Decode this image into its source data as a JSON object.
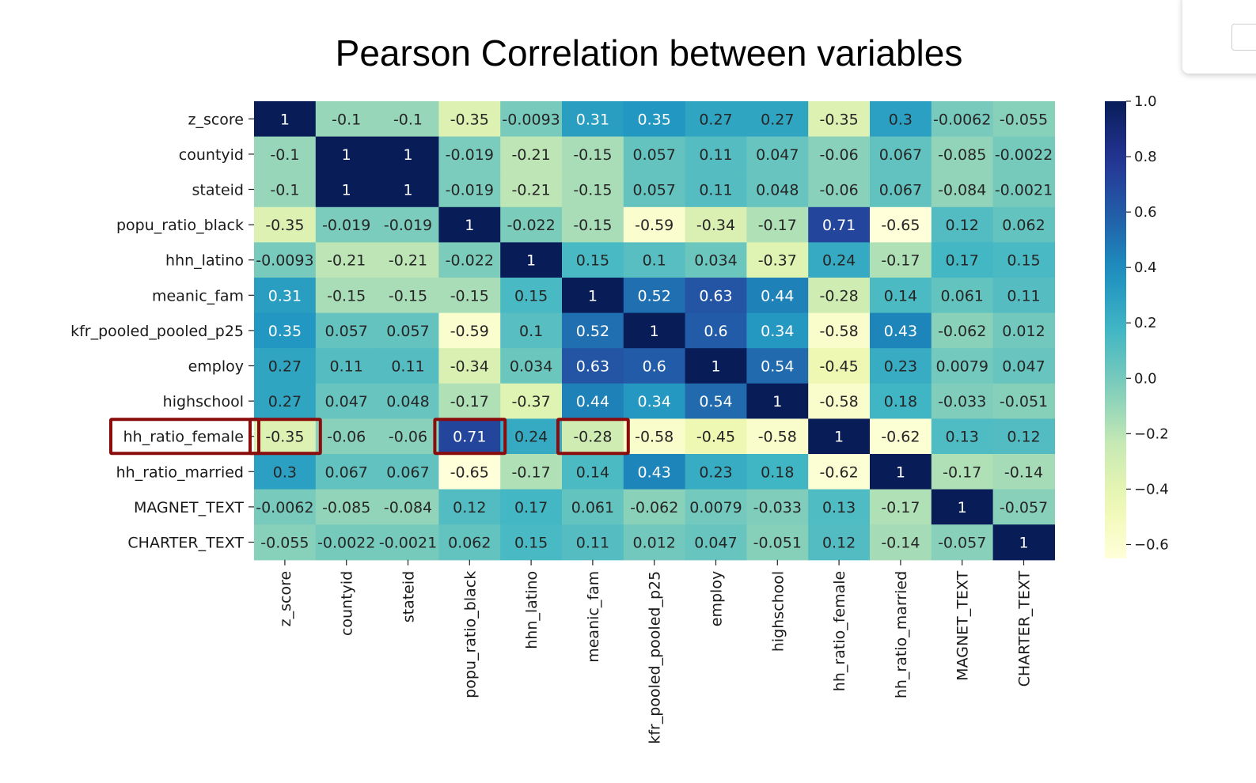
{
  "chart_data": {
    "type": "heatmap",
    "title": "Pearson Correlation between variables",
    "variables": [
      "z_score",
      "countyid",
      "stateid",
      "popu_ratio_black",
      "hhn_latino",
      "meanic_fam",
      "kfr_pooled_pooled_p25",
      "employ",
      "highschool",
      "hh_ratio_female",
      "hh_ratio_married",
      "MAGNET_TEXT",
      "CHARTER_TEXT"
    ],
    "values": [
      [
        1,
        -0.1,
        -0.1,
        -0.35,
        -0.0093,
        0.31,
        0.35,
        0.27,
        0.27,
        -0.35,
        0.3,
        -0.0062,
        -0.055
      ],
      [
        -0.1,
        1,
        1,
        -0.019,
        -0.21,
        -0.15,
        0.057,
        0.11,
        0.047,
        -0.06,
        0.067,
        -0.085,
        -0.0022
      ],
      [
        -0.1,
        1,
        1,
        -0.019,
        -0.21,
        -0.15,
        0.057,
        0.11,
        0.048,
        -0.06,
        0.067,
        -0.084,
        -0.0021
      ],
      [
        -0.35,
        -0.019,
        -0.019,
        1,
        -0.022,
        -0.15,
        -0.59,
        -0.34,
        -0.17,
        0.71,
        -0.65,
        0.12,
        0.062
      ],
      [
        -0.0093,
        -0.21,
        -0.21,
        -0.022,
        1,
        0.15,
        0.1,
        0.034,
        -0.37,
        0.24,
        -0.17,
        0.17,
        0.15
      ],
      [
        0.31,
        -0.15,
        -0.15,
        -0.15,
        0.15,
        1,
        0.52,
        0.63,
        0.44,
        -0.28,
        0.14,
        0.061,
        0.11
      ],
      [
        0.35,
        0.057,
        0.057,
        -0.59,
        0.1,
        0.52,
        1,
        0.6,
        0.34,
        -0.58,
        0.43,
        -0.062,
        0.012
      ],
      [
        0.27,
        0.11,
        0.11,
        -0.34,
        0.034,
        0.63,
        0.6,
        1,
        0.54,
        -0.45,
        0.23,
        0.0079,
        0.047
      ],
      [
        0.27,
        0.047,
        0.048,
        -0.17,
        -0.37,
        0.44,
        0.34,
        0.54,
        1,
        -0.58,
        0.18,
        -0.033,
        -0.051
      ],
      [
        -0.35,
        -0.06,
        -0.06,
        0.71,
        0.24,
        -0.28,
        -0.58,
        -0.45,
        -0.58,
        1,
        -0.62,
        0.13,
        0.12
      ],
      [
        0.3,
        0.067,
        0.067,
        -0.65,
        -0.17,
        0.14,
        0.43,
        0.23,
        0.18,
        -0.62,
        1,
        -0.17,
        -0.14
      ],
      [
        -0.0062,
        -0.085,
        -0.084,
        0.12,
        0.17,
        0.061,
        -0.062,
        0.0079,
        -0.033,
        0.13,
        -0.17,
        1,
        -0.057
      ],
      [
        -0.055,
        -0.0022,
        -0.0021,
        0.062,
        0.15,
        0.11,
        0.012,
        0.047,
        -0.051,
        0.12,
        -0.14,
        -0.057,
        1
      ]
    ],
    "value_labels": [
      [
        "1",
        "-0.1",
        "-0.1",
        "-0.35",
        "-0.0093",
        "0.31",
        "0.35",
        "0.27",
        "0.27",
        "-0.35",
        "0.3",
        "-0.0062",
        "-0.055"
      ],
      [
        "-0.1",
        "1",
        "1",
        "-0.019",
        "-0.21",
        "-0.15",
        "0.057",
        "0.11",
        "0.047",
        "-0.06",
        "0.067",
        "-0.085",
        "-0.0022"
      ],
      [
        "-0.1",
        "1",
        "1",
        "-0.019",
        "-0.21",
        "-0.15",
        "0.057",
        "0.11",
        "0.048",
        "-0.06",
        "0.067",
        "-0.084",
        "-0.0021"
      ],
      [
        "-0.35",
        "-0.019",
        "-0.019",
        "1",
        "-0.022",
        "-0.15",
        "-0.59",
        "-0.34",
        "-0.17",
        "0.71",
        "-0.65",
        "0.12",
        "0.062"
      ],
      [
        "-0.0093",
        "-0.21",
        "-0.21",
        "-0.022",
        "1",
        "0.15",
        "0.1",
        "0.034",
        "-0.37",
        "0.24",
        "-0.17",
        "0.17",
        "0.15"
      ],
      [
        "0.31",
        "-0.15",
        "-0.15",
        "-0.15",
        "0.15",
        "1",
        "0.52",
        "0.63",
        "0.44",
        "-0.28",
        "0.14",
        "0.061",
        "0.11"
      ],
      [
        "0.35",
        "0.057",
        "0.057",
        "-0.59",
        "0.1",
        "0.52",
        "1",
        "0.6",
        "0.34",
        "-0.58",
        "0.43",
        "-0.062",
        "0.012"
      ],
      [
        "0.27",
        "0.11",
        "0.11",
        "-0.34",
        "0.034",
        "0.63",
        "0.6",
        "1",
        "0.54",
        "-0.45",
        "0.23",
        "0.0079",
        "0.047"
      ],
      [
        "0.27",
        "0.047",
        "0.048",
        "-0.17",
        "-0.37",
        "0.44",
        "0.34",
        "0.54",
        "1",
        "-0.58",
        "0.18",
        "-0.033",
        "-0.051"
      ],
      [
        "-0.35",
        "-0.06",
        "-0.06",
        "0.71",
        "0.24",
        "-0.28",
        "-0.58",
        "-0.45",
        "-0.58",
        "1",
        "-0.62",
        "0.13",
        "0.12"
      ],
      [
        "0.3",
        "0.067",
        "0.067",
        "-0.65",
        "-0.17",
        "0.14",
        "0.43",
        "0.23",
        "0.18",
        "-0.62",
        "1",
        "-0.17",
        "-0.14"
      ],
      [
        "-0.0062",
        "-0.085",
        "-0.084",
        "0.12",
        "0.17",
        "0.061",
        "-0.062",
        "0.0079",
        "-0.033",
        "0.13",
        "-0.17",
        "1",
        "-0.057"
      ],
      [
        "-0.055",
        "-0.0022",
        "-0.0021",
        "0.062",
        "0.15",
        "0.11",
        "0.012",
        "0.047",
        "-0.051",
        "0.12",
        "-0.14",
        "-0.057",
        "1"
      ]
    ],
    "colormap": "YlGnBu",
    "colorbar": {
      "range": [
        -0.65,
        1.0
      ],
      "ticks": [
        1.0,
        0.8,
        0.6,
        0.4,
        0.2,
        0.0,
        -0.2,
        -0.4,
        -0.6
      ],
      "tick_labels": [
        "1.0",
        "0.8",
        "0.6",
        "0.4",
        "0.2",
        "0.0",
        "−0.2",
        "−0.4",
        "−0.6"
      ]
    },
    "highlights": [
      {
        "target": "row-label",
        "row": 9
      },
      {
        "target": "cell",
        "row": 9,
        "col": 0
      },
      {
        "target": "cell",
        "row": 9,
        "col": 3
      },
      {
        "target": "cell",
        "row": 9,
        "col": 5
      }
    ],
    "highlight_color": "#8b0c0c"
  }
}
